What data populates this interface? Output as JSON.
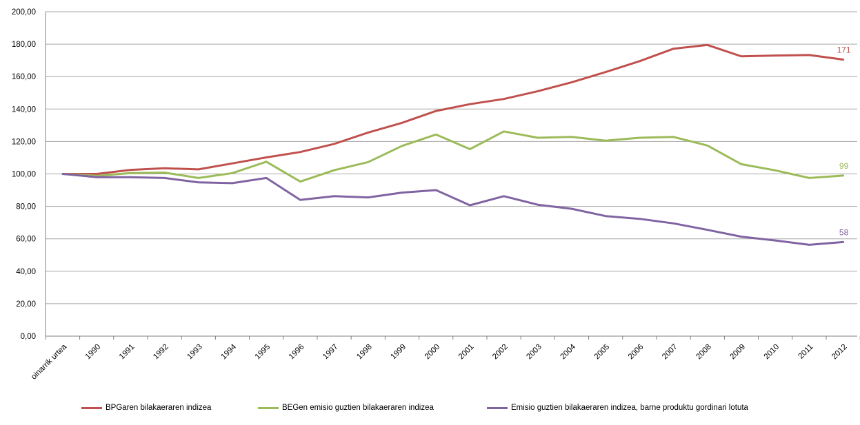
{
  "chart_data": {
    "type": "line",
    "title": "",
    "xlabel": "",
    "ylabel": "",
    "ylim": [
      0,
      200
    ],
    "yticks": [
      "0,00",
      "20,00",
      "40,00",
      "60,00",
      "80,00",
      "100,00",
      "120,00",
      "140,00",
      "160,00",
      "180,00",
      "200,00"
    ],
    "grid": true,
    "legend_position": "bottom",
    "categories": [
      "oinarrik urtea",
      "1990",
      "1991",
      "1992",
      "1993",
      "1994",
      "1995",
      "1996",
      "1997",
      "1998",
      "1999",
      "2000",
      "2001",
      "2002",
      "2003",
      "2004",
      "2005",
      "2006",
      "2007",
      "2008",
      "2009",
      "2010",
      "2011",
      "2012"
    ],
    "series": [
      {
        "name": "BPGaren bilakaeraren indizea",
        "color": "#c0504d",
        "values": [
          100,
          100,
          102.5,
          103.5,
          102.8,
          106.5,
          110.2,
          113.5,
          118.5,
          125.5,
          131.5,
          138.8,
          143.0,
          146.2,
          151.0,
          156.5,
          162.8,
          169.5,
          177.2,
          179.5,
          172.5,
          173.0,
          173.3,
          170.5
        ],
        "end_label": "171"
      },
      {
        "name": "BEGen emisio guztien bilakaeraren indizea",
        "color": "#9bbb59",
        "values": [
          100,
          98.8,
          100.5,
          100.8,
          97.5,
          100.5,
          107.5,
          95.3,
          102.3,
          107.3,
          117.3,
          124.3,
          115.3,
          126.2,
          122.3,
          122.8,
          120.5,
          122.3,
          122.8,
          117.5,
          106.0,
          102.2,
          97.5,
          99.0
        ],
        "end_label": "99"
      },
      {
        "name": "Emisio guztien bilakaeraren indizea, barne produktu gordinari lotuta",
        "color": "#8064a2",
        "values": [
          100,
          98.0,
          98.0,
          97.5,
          94.8,
          94.3,
          97.5,
          84.0,
          86.3,
          85.5,
          88.5,
          90.0,
          80.7,
          86.3,
          81.0,
          78.5,
          74.0,
          72.3,
          69.5,
          65.5,
          61.3,
          59.0,
          56.3,
          58.0
        ],
        "end_label": "58"
      }
    ]
  }
}
